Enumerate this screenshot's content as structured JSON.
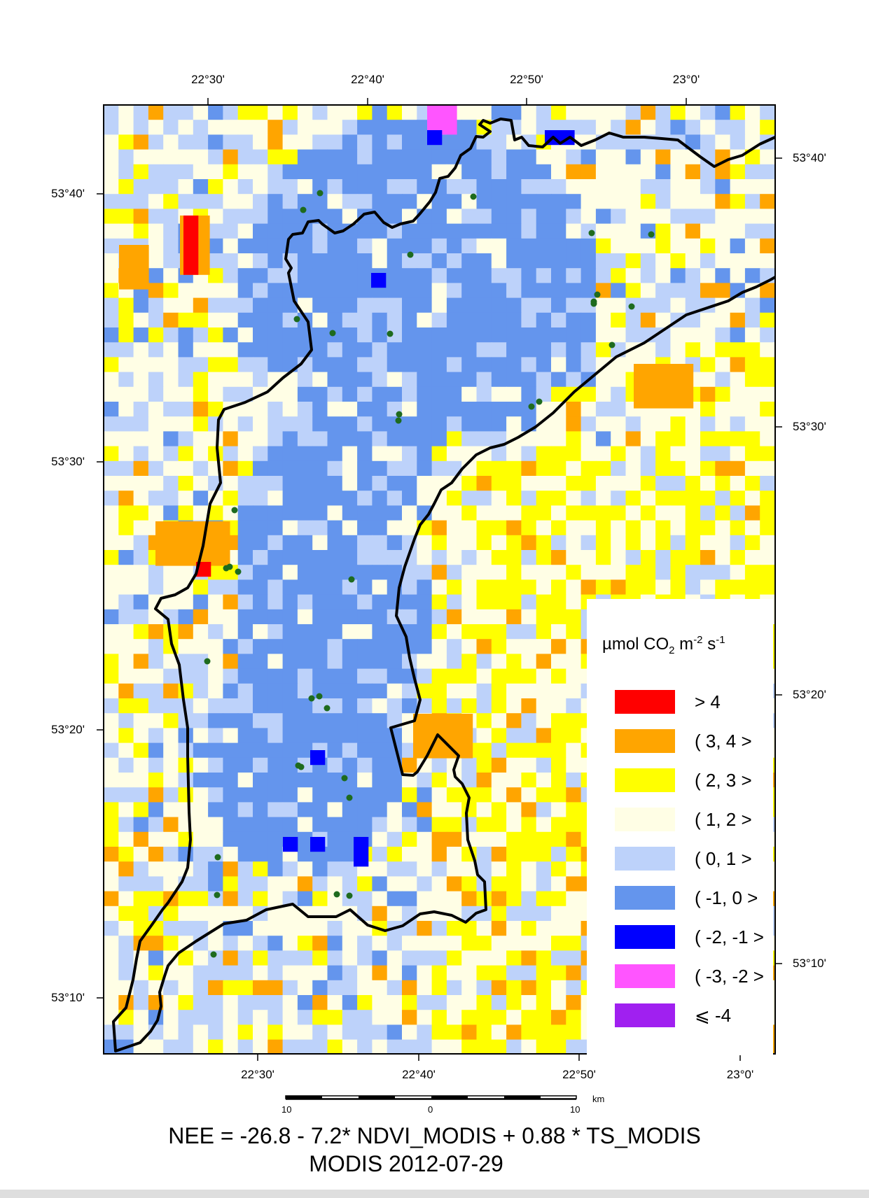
{
  "map": {
    "title": "NEE = -26.8 - 7.2* NDVI_MODIS + 0.88 * TS_MODIS",
    "subtitle": "MODIS 2012-07-29",
    "top_axis_labels": [
      "22°30'",
      "22°40'",
      "22°50'",
      "23°0'"
    ],
    "bottom_axis_labels": [
      "22°30'",
      "22°40'",
      "22°50'",
      "23°0'"
    ],
    "left_axis_labels": [
      "53°40'",
      "53°30'",
      "53°20'",
      "53°10'"
    ],
    "right_axis_labels": [
      "53°40'",
      "53°30'",
      "53°20'",
      "53°10'"
    ],
    "colors": {
      "gt4": "#ff0000",
      "c3_4": "#ffa500",
      "c2_3": "#ffff00",
      "c1_2": "#fffee5",
      "c0_1": "#bdd2fa",
      "cm1_0": "#6495ed",
      "cm2_m1": "#0000ff",
      "cm3_m2": "#ff55ff",
      "le_m4": "#a020f0",
      "boundary": "#000000",
      "station_point": "#1e6b1e"
    }
  },
  "legend": {
    "unit_prefix": "µmol CO",
    "unit_sub": "2",
    "unit_mid": " m",
    "unit_exp1": "-2",
    "unit_s": " s",
    "unit_exp2": "-1",
    "items": [
      {
        "label": "> 4",
        "color": "#ff0000"
      },
      {
        "label": "( 3, 4 >",
        "color": "#ffa500"
      },
      {
        "label": "( 2, 3 >",
        "color": "#ffff00"
      },
      {
        "label": "( 1, 2 >",
        "color": "#fffee5"
      },
      {
        "label": "( 0, 1 >",
        "color": "#bdd2fa"
      },
      {
        "label": "( -1, 0 >",
        "color": "#6495ed"
      },
      {
        "label": "( -2, -1 >",
        "color": "#0000ff"
      },
      {
        "label": "( -3, -2 >",
        "color": "#ff55ff"
      },
      {
        "label": "⩽ -4",
        "color": "#a020f0"
      }
    ]
  },
  "scale_bar": {
    "left": "10",
    "center": "0",
    "right": "10",
    "unit": "km"
  }
}
